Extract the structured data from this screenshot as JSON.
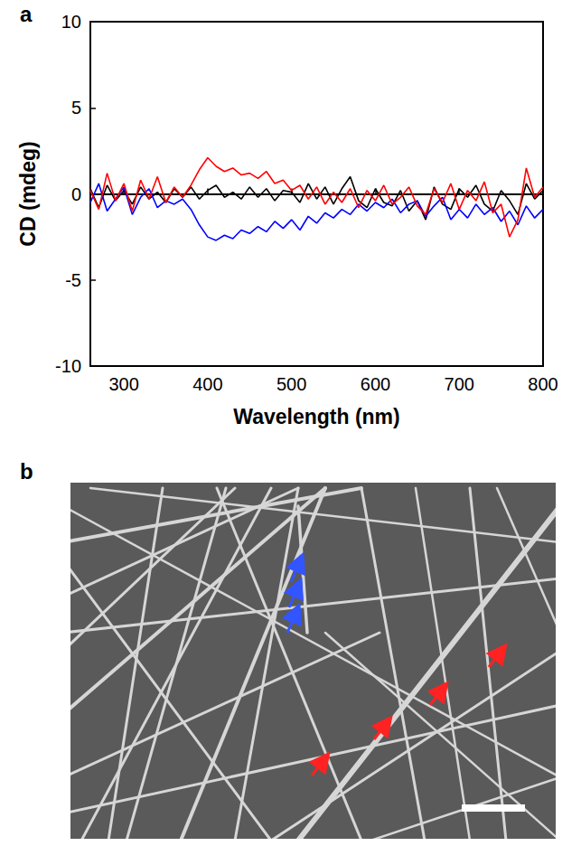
{
  "chart_data": {
    "type": "line",
    "label": "a",
    "x_label": "Wavelength (nm)",
    "y_label": "CD (mdeg)",
    "x": [
      260,
      270,
      280,
      290,
      300,
      310,
      320,
      330,
      340,
      350,
      360,
      370,
      380,
      390,
      400,
      410,
      420,
      430,
      440,
      450,
      460,
      470,
      480,
      490,
      500,
      510,
      520,
      530,
      540,
      550,
      560,
      570,
      580,
      590,
      600,
      610,
      620,
      630,
      640,
      650,
      660,
      670,
      680,
      690,
      700,
      710,
      720,
      730,
      740,
      750,
      760,
      770,
      780,
      790,
      800
    ],
    "series": [
      {
        "color": "#000000",
        "line_style": "solid",
        "values": [
          0.3,
          -0.8,
          0.5,
          -0.4,
          0.2,
          -0.6,
          0.4,
          -0.3,
          0.1,
          -0.5,
          0.3,
          -0.2,
          0.4,
          -0.3,
          0.2,
          0.5,
          -0.2,
          0.1,
          -0.3,
          0.4,
          -0.2,
          0.3,
          -0.4,
          0.2,
          0.1,
          -0.5,
          0.6,
          -0.3,
          0.4,
          -0.6,
          0.3,
          1.0,
          -0.4,
          -0.8,
          0.3,
          -0.5,
          -0.7,
          0.2,
          -1.0,
          -0.4,
          -1.5,
          0.4,
          -0.6,
          -0.9,
          0.3,
          -0.2,
          0.5,
          -0.6,
          -1.0,
          0.2,
          -0.4,
          -1.2,
          0.6,
          -0.3,
          0.2
        ]
      },
      {
        "color": "#0000ff",
        "line_style": "solid",
        "values": [
          -0.5,
          0.6,
          -1.0,
          -0.3,
          0.4,
          -1.2,
          -0.2,
          0.3,
          -0.8,
          -0.4,
          -0.6,
          -0.3,
          -0.9,
          -1.8,
          -2.5,
          -2.7,
          -2.4,
          -2.6,
          -2.1,
          -2.3,
          -1.9,
          -2.2,
          -1.6,
          -2.0,
          -1.5,
          -2.1,
          -1.3,
          -1.7,
          -1.1,
          -1.4,
          -0.9,
          -1.2,
          -0.6,
          -1.0,
          -0.5,
          -0.8,
          -0.3,
          -1.1,
          -0.6,
          -0.4,
          -1.3,
          -0.7,
          -0.2,
          -1.5,
          -0.9,
          -1.4,
          -0.6,
          -1.2,
          -0.8,
          -1.6,
          -1.0,
          -1.8,
          -0.7,
          -1.4,
          -0.9
        ]
      },
      {
        "color": "#ff0000",
        "line_style": "solid",
        "values": [
          0.2,
          -0.9,
          1.2,
          -0.4,
          0.6,
          -1.0,
          0.8,
          -0.3,
          1.0,
          -0.5,
          0.4,
          -0.2,
          0.5,
          1.4,
          2.1,
          1.6,
          1.3,
          1.5,
          1.1,
          1.2,
          0.9,
          1.3,
          0.6,
          0.8,
          0.2,
          0.5,
          -0.3,
          0.4,
          -0.6,
          0.1,
          -0.5,
          0.3,
          -0.8,
          0.2,
          -0.4,
          0.5,
          -0.6,
          -0.2,
          0.4,
          -0.7,
          -1.2,
          0.3,
          -0.5,
          0.6,
          -0.9,
          0.2,
          -0.4,
          0.7,
          -1.1,
          -0.6,
          -2.5,
          -1.5,
          1.5,
          -0.2,
          0.4
        ]
      }
    ],
    "xlim": [
      260,
      800
    ],
    "xticks": [
      300,
      400,
      500,
      600,
      700,
      800
    ],
    "ylim": [
      -10,
      10
    ],
    "yticks": [
      -10,
      -5,
      0,
      5,
      10
    ],
    "grid": false
  },
  "image_panel": {
    "label": "b"
  }
}
